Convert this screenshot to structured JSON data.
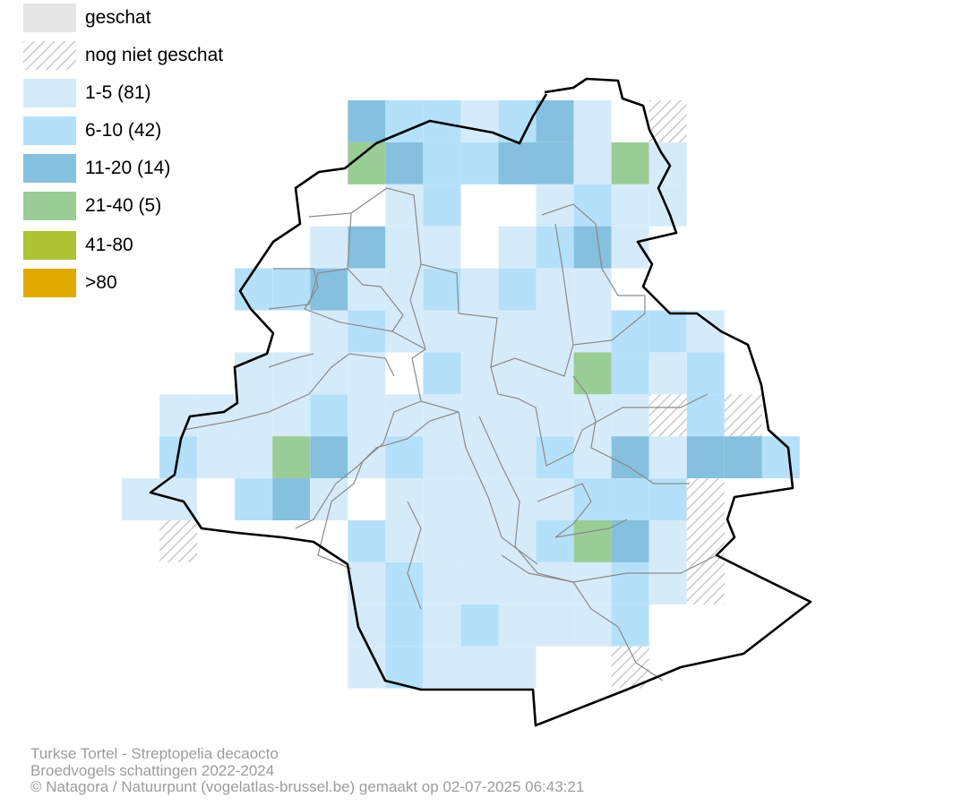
{
  "legend": {
    "items": [
      {
        "label": "geschat",
        "color": "#e6e6e6",
        "pattern": "solid"
      },
      {
        "label": "nog niet geschat",
        "color": "#c9c9c9",
        "pattern": "hatched"
      },
      {
        "label": "1-5 (81)",
        "color": "#d6ebfa",
        "pattern": "solid"
      },
      {
        "label": "6-10 (42)",
        "color": "#b5e0fa",
        "pattern": "solid"
      },
      {
        "label": "11-20 (14)",
        "color": "#86c0df",
        "pattern": "solid"
      },
      {
        "label": "21-40 (5)",
        "color": "#9acc96",
        "pattern": "solid"
      },
      {
        "label": "41-80",
        "color": "#adc234",
        "pattern": "solid"
      },
      {
        "label": ">80",
        "color": "#e0aa00",
        "pattern": "solid"
      }
    ]
  },
  "caption": {
    "species": "Turkse Tortel - Streptopelia decaocto",
    "survey": "Broedvogels schattingen 2022-2024",
    "credit": "© Natagora / Natuurpunt (vogelatlas-brussel.be) gemaakt op 02-07-2025 06:43:21"
  }
}
